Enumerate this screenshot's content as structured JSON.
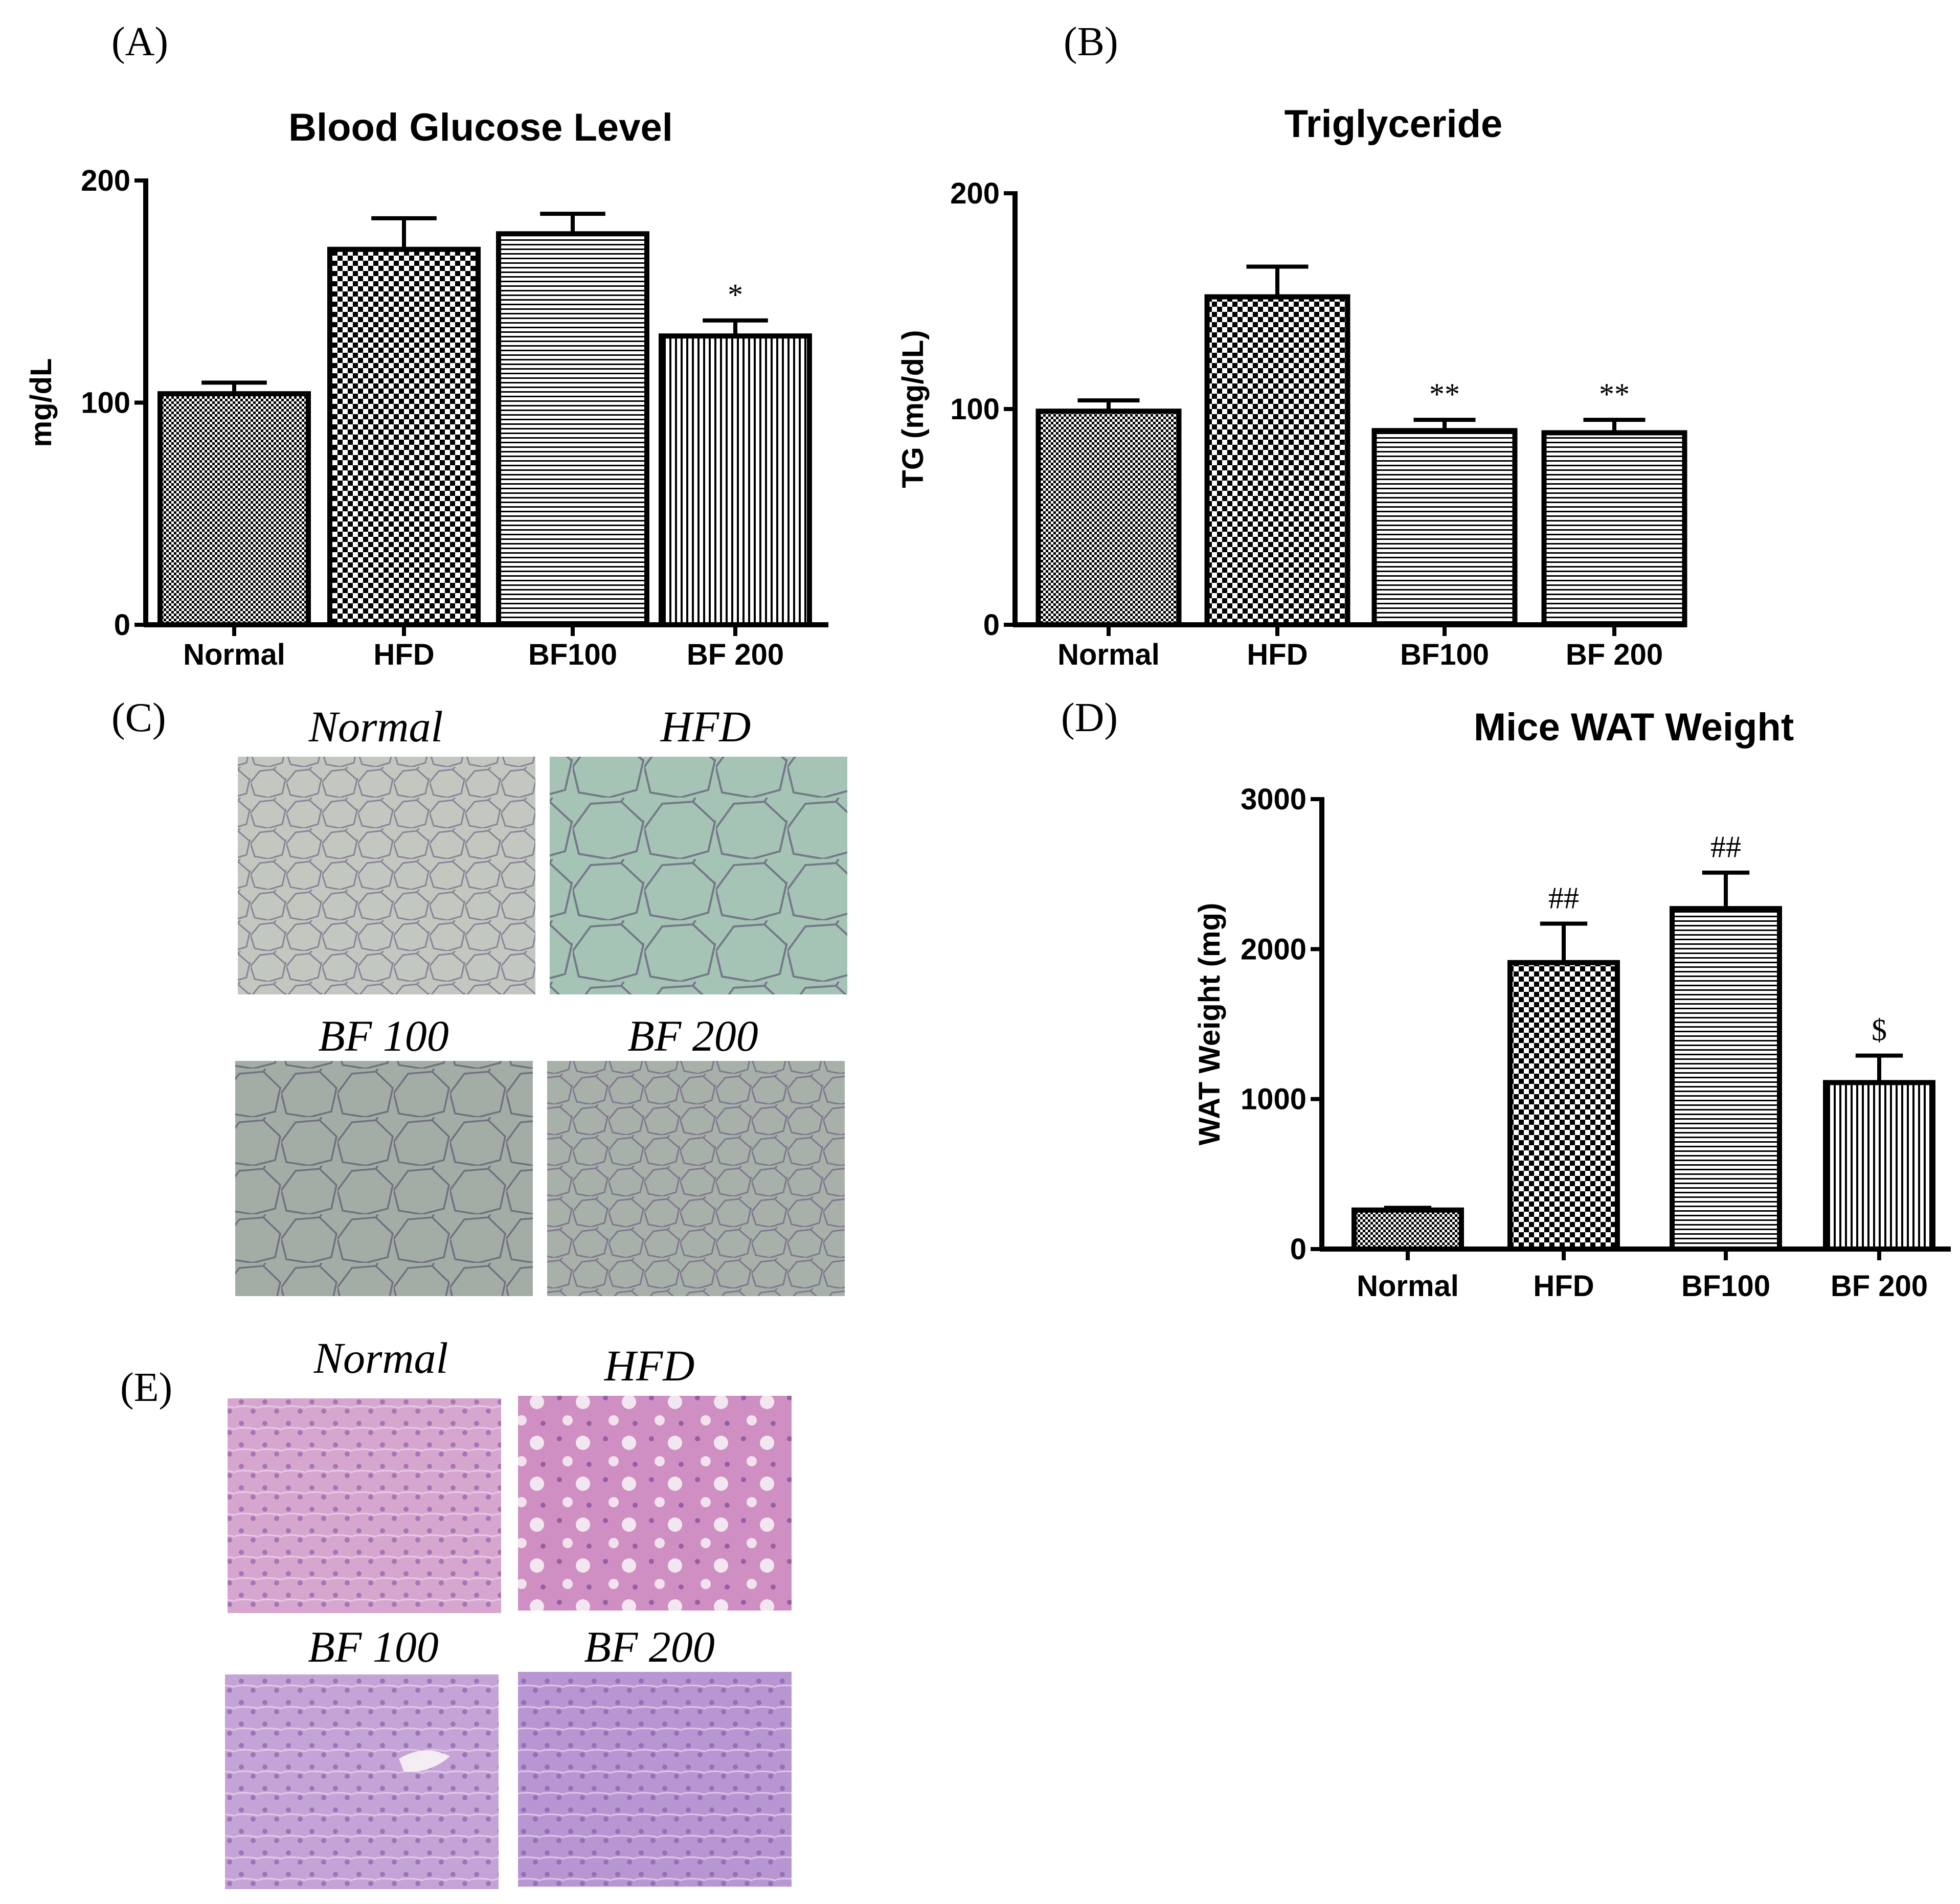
{
  "panels": {
    "A": "(A)",
    "B": "(B)",
    "C": "(C)",
    "D": "(D)",
    "E": "(E)"
  },
  "chart_data": [
    {
      "panel": "A",
      "type": "bar",
      "title": "Blood Glucose Level",
      "xlabel": "",
      "ylabel": "mg/dL",
      "ylim": [
        0,
        200
      ],
      "yticks": [
        0,
        100,
        200
      ],
      "categories": [
        "Normal",
        "HFD",
        "BF100",
        "BF 200"
      ],
      "values": [
        104,
        169,
        176,
        130
      ],
      "errors": [
        5,
        14,
        9,
        7
      ],
      "annotations": [
        "",
        "",
        "",
        "*"
      ],
      "patterns": [
        "fine-check",
        "coarse-check",
        "horizontal",
        "vertical"
      ]
    },
    {
      "panel": "B",
      "type": "bar",
      "title": "Triglyceride",
      "xlabel": "",
      "ylabel": "TG (mg/dL)",
      "ylim": [
        0,
        200
      ],
      "yticks": [
        0,
        100,
        200
      ],
      "categories": [
        "Normal",
        "HFD",
        "BF100",
        "BF 200"
      ],
      "values": [
        99,
        152,
        90,
        89
      ],
      "errors": [
        5,
        14,
        5,
        6
      ],
      "annotations": [
        "",
        "",
        "**",
        "**"
      ],
      "patterns": [
        "fine-check",
        "coarse-check",
        "horizontal",
        "horizontal"
      ]
    },
    {
      "panel": "D",
      "type": "bar",
      "title": "Mice WAT Weight",
      "xlabel": "",
      "ylabel": "WAT Weight (mg)",
      "ylim": [
        0,
        3000
      ],
      "yticks": [
        0,
        1000,
        2000,
        3000
      ],
      "categories": [
        "Normal",
        "HFD",
        "BF100",
        "BF 200"
      ],
      "values": [
        260,
        1910,
        2270,
        1110
      ],
      "errors": [
        15,
        260,
        240,
        180
      ],
      "annotations": [
        "",
        "##",
        "##",
        "$"
      ],
      "patterns": [
        "fine-check",
        "coarse-check",
        "horizontal",
        "vertical"
      ]
    }
  ],
  "histology_c": {
    "labels": [
      "Normal",
      "HFD",
      "BF 100",
      "BF 200"
    ],
    "colors": [
      "#c2c8c0",
      "#a6c4b6",
      "#a3ada6",
      "#a8b0aa"
    ]
  },
  "histology_e": {
    "labels": [
      "Normal",
      "HFD",
      "BF 100",
      "BF 200"
    ],
    "colors": [
      "#d6a6cf",
      "#cf8fc2",
      "#c4a4d6",
      "#b796d2"
    ]
  }
}
